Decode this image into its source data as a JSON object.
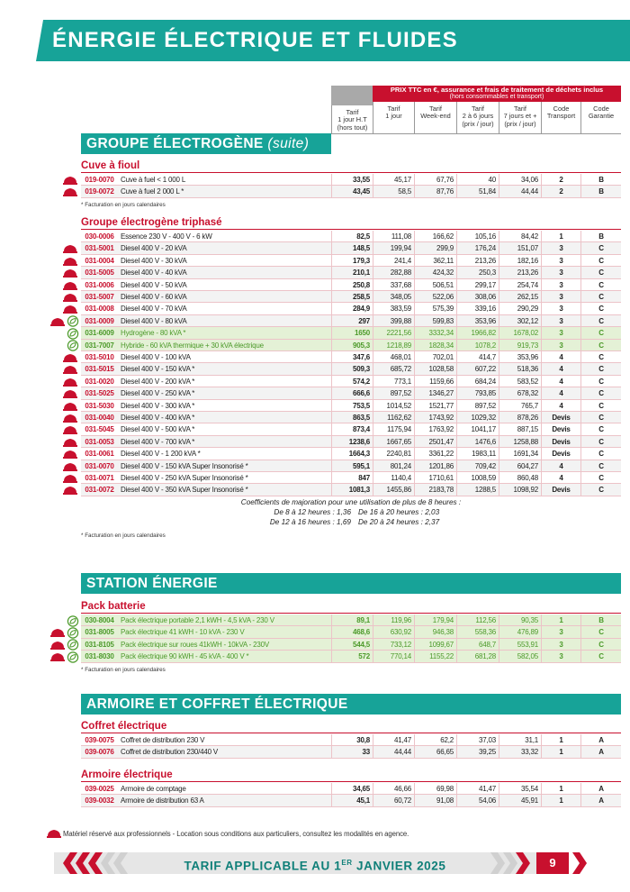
{
  "title": "ÉNERGIE ÉLECTRIQUE ET FLUIDES",
  "table_header": {
    "price_title": "PRIX TTC en €, assurance et frais de traitement de déchets inclus",
    "price_subtitle": "(hors consommables et transport)",
    "columns": [
      [
        "Tarif",
        "1 jour H.T",
        "(hors tout)"
      ],
      [
        "Tarif",
        "1 jour"
      ],
      [
        "Tarif",
        "Week-end"
      ],
      [
        "Tarif",
        "2 à 6 jours",
        "(prix / jour)"
      ],
      [
        "Tarif",
        "7 jours et +",
        "(prix / jour)"
      ],
      [
        "Code",
        "Transport"
      ],
      [
        "Code",
        "Garantie"
      ]
    ]
  },
  "sections": [
    {
      "title": "GROUPE ÉLECTROGÈNE",
      "title_suffix": "(suite)",
      "groups": [
        {
          "title": "Cuve à fioul",
          "rows": [
            {
              "cells": [
                "019-0070",
                "Cuve à fuel  < 1 000 L",
                "33,55",
                "45,17",
                "67,76",
                "40",
                "34,06",
                "2",
                "B"
              ],
              "pro": true,
              "eco": false,
              "green": false
            },
            {
              "cells": [
                "019-0072",
                "Cuve à fuel  2 000 L *",
                "43,45",
                "58,5",
                "87,76",
                "51,84",
                "44,44",
                "2",
                "B"
              ],
              "pro": true,
              "eco": false,
              "green": false
            }
          ],
          "note": "* Facturation en jours calendaires"
        },
        {
          "title": "Groupe électrogène triphasé",
          "rows": [
            {
              "cells": [
                "030-0006",
                "Essence 230 V - 400 V - 6 kW",
                "82,5",
                "111,08",
                "166,62",
                "105,16",
                "84,42",
                "1",
                "B"
              ],
              "pro": false,
              "eco": false,
              "green": false
            },
            {
              "cells": [
                "031-5001",
                "Diesel 400 V - 20 kVA",
                "148,5",
                "199,94",
                "299,9",
                "176,24",
                "151,07",
                "3",
                "C"
              ],
              "pro": true,
              "eco": false,
              "green": false
            },
            {
              "cells": [
                "031-0004",
                "Diesel 400 V - 30 kVA",
                "179,3",
                "241,4",
                "362,11",
                "213,26",
                "182,16",
                "3",
                "C"
              ],
              "pro": true,
              "eco": false,
              "green": false
            },
            {
              "cells": [
                "031-5005",
                "Diesel 400 V - 40 kVA",
                "210,1",
                "282,88",
                "424,32",
                "250,3",
                "213,26",
                "3",
                "C"
              ],
              "pro": true,
              "eco": false,
              "green": false
            },
            {
              "cells": [
                "031-0006",
                "Diesel 400 V - 50 kVA",
                "250,8",
                "337,68",
                "506,51",
                "299,17",
                "254,74",
                "3",
                "C"
              ],
              "pro": true,
              "eco": false,
              "green": false
            },
            {
              "cells": [
                "031-5007",
                "Diesel 400 V - 60 kVA",
                "258,5",
                "348,05",
                "522,06",
                "308,06",
                "262,15",
                "3",
                "C"
              ],
              "pro": true,
              "eco": false,
              "green": false
            },
            {
              "cells": [
                "031-0008",
                "Diesel 400 V - 70 kVA",
                "284,9",
                "383,59",
                "575,39",
                "339,16",
                "290,29",
                "3",
                "C"
              ],
              "pro": true,
              "eco": false,
              "green": false
            },
            {
              "cells": [
                "031-0009",
                "Diesel 400 V - 80 kVA",
                "297",
                "399,88",
                "599,83",
                "353,96",
                "302,12",
                "3",
                "C"
              ],
              "pro": true,
              "eco": true,
              "green": false
            },
            {
              "cells": [
                "031-6009",
                "Hydrogène - 80 kVA *",
                "1650",
                "2221,56",
                "3332,34",
                "1966,82",
                "1678,02",
                "3",
                "C"
              ],
              "pro": false,
              "eco": true,
              "green": true
            },
            {
              "cells": [
                "031-7007",
                "Hybride - 60 kVA thermique + 30 kVA électrique",
                "905,3",
                "1218,89",
                "1828,34",
                "1078,2",
                "919,73",
                "3",
                "C"
              ],
              "pro": false,
              "eco": true,
              "green": true
            },
            {
              "cells": [
                "031-5010",
                "Diesel 400 V - 100 kVA",
                "347,6",
                "468,01",
                "702,01",
                "414,7",
                "353,96",
                "4",
                "C"
              ],
              "pro": true,
              "eco": false,
              "green": false
            },
            {
              "cells": [
                "031-5015",
                "Diesel 400 V - 150 kVA *",
                "509,3",
                "685,72",
                "1028,58",
                "607,22",
                "518,36",
                "4",
                "C"
              ],
              "pro": true,
              "eco": false,
              "green": false
            },
            {
              "cells": [
                "031-0020",
                "Diesel 400 V - 200 kVA *",
                "574,2",
                "773,1",
                "1159,66",
                "684,24",
                "583,52",
                "4",
                "C"
              ],
              "pro": true,
              "eco": false,
              "green": false
            },
            {
              "cells": [
                "031-5025",
                "Diesel 400 V - 250 kVA *",
                "666,6",
                "897,52",
                "1346,27",
                "793,85",
                "678,32",
                "4",
                "C"
              ],
              "pro": true,
              "eco": false,
              "green": false
            },
            {
              "cells": [
                "031-5030",
                "Diesel 400 V - 300 kVA *",
                "753,5",
                "1014,52",
                "1521,77",
                "897,52",
                "765,7",
                "4",
                "C"
              ],
              "pro": true,
              "eco": false,
              "green": false
            },
            {
              "cells": [
                "031-0040",
                "Diesel 400 V - 400 kVA *",
                "863,5",
                "1162,62",
                "1743,92",
                "1029,32",
                "878,26",
                "Devis",
                "C"
              ],
              "pro": true,
              "eco": false,
              "green": false
            },
            {
              "cells": [
                "031-5045",
                "Diesel 400 V - 500 kVA *",
                "873,4",
                "1175,94",
                "1763,92",
                "1041,17",
                "887,15",
                "Devis",
                "C"
              ],
              "pro": true,
              "eco": false,
              "green": false
            },
            {
              "cells": [
                "031-0053",
                "Diesel 400 V - 700 kVA *",
                "1238,6",
                "1667,65",
                "2501,47",
                "1476,6",
                "1258,88",
                "Devis",
                "C"
              ],
              "pro": true,
              "eco": false,
              "green": false
            },
            {
              "cells": [
                "031-0061",
                "Diesel 400 V - 1 200 kVA *",
                "1664,3",
                "2240,81",
                "3361,22",
                "1983,11",
                "1691,34",
                "Devis",
                "C"
              ],
              "pro": true,
              "eco": false,
              "green": false
            },
            {
              "cells": [
                "031-0070",
                "Diesel 400 V - 150 kVA Super Insonorisé *",
                "595,1",
                "801,24",
                "1201,86",
                "709,42",
                "604,27",
                "4",
                "C"
              ],
              "pro": true,
              "eco": false,
              "green": false
            },
            {
              "cells": [
                "031-0071",
                "Diesel 400 V - 250 kVA Super Insonorisé *",
                "847",
                "1140,4",
                "1710,61",
                "1008,59",
                "860,48",
                "4",
                "C"
              ],
              "pro": true,
              "eco": false,
              "green": false
            },
            {
              "cells": [
                "031-0072",
                "Diesel 400 V - 350 kVA Super Insonorisé *",
                "1081,3",
                "1455,86",
                "2183,78",
                "1288,5",
                "1098,92",
                "Devis",
                "C"
              ],
              "pro": true,
              "eco": false,
              "green": false
            }
          ],
          "coefficients": {
            "title": "Coefficients de majoration pour une utilisation de plus de 8 heures :",
            "items": [
              "De 8 à 12 heures : 1,36",
              "De 16 à 20 heures : 2,03",
              "De 12 à 16 heures : 1,69",
              "De 20 à 24 heures : 2,37"
            ]
          },
          "note": "* Facturation en jours calendaires"
        }
      ]
    },
    {
      "title": "STATION ÉNERGIE",
      "groups": [
        {
          "title": "Pack batterie",
          "rows": [
            {
              "cells": [
                "030-8004",
                "Pack électrique portable 2,1 kWH - 4,5 kVA - 230 V",
                "89,1",
                "119,96",
                "179,94",
                "112,56",
                "90,35",
                "1",
                "B"
              ],
              "pro": false,
              "eco": true,
              "green": true
            },
            {
              "cells": [
                "031-8005",
                "Pack électrique 41 kWH - 10 kVA - 230 V",
                "468,6",
                "630,92",
                "946,38",
                "558,36",
                "476,89",
                "3",
                "C"
              ],
              "pro": true,
              "eco": true,
              "green": true
            },
            {
              "cells": [
                "031-8105",
                "Pack électrique sur roues  41kWH - 10kVA - 230V",
                "544,5",
                "733,12",
                "1099,67",
                "648,7",
                "553,91",
                "3",
                "C"
              ],
              "pro": true,
              "eco": true,
              "green": true
            },
            {
              "cells": [
                "031-8030",
                "Pack électrique 90 kWH - 45 kVA - 400 V *",
                "572",
                "770,14",
                "1155,22",
                "681,28",
                "582,05",
                "3",
                "C"
              ],
              "pro": true,
              "eco": true,
              "green": true
            }
          ],
          "note": "* Facturation en jours calendaires"
        }
      ]
    },
    {
      "title": "ARMOIRE ET COFFRET ÉLECTRIQUE",
      "groups": [
        {
          "title": "Coffret électrique",
          "rows": [
            {
              "cells": [
                "039-0075",
                "Coffret de distribution 230 V",
                "30,8",
                "41,47",
                "62,2",
                "37,03",
                "31,1",
                "1",
                "A"
              ],
              "pro": false,
              "eco": false,
              "green": false
            },
            {
              "cells": [
                "039-0076",
                "Coffret de distribution 230/440 V",
                "33",
                "44,44",
                "66,65",
                "39,25",
                "33,32",
                "1",
                "A"
              ],
              "pro": false,
              "eco": false,
              "green": false
            }
          ]
        },
        {
          "title": "Armoire électrique",
          "rows": [
            {
              "cells": [
                "039-0025",
                "Armoire de comptage",
                "34,65",
                "46,66",
                "69,98",
                "41,47",
                "35,54",
                "1",
                "A"
              ],
              "pro": false,
              "eco": false,
              "green": false
            },
            {
              "cells": [
                "039-0032",
                "Armoire de distribution 63 A",
                "45,1",
                "60,72",
                "91,08",
                "54,06",
                "45,91",
                "1",
                "A"
              ],
              "pro": false,
              "eco": false,
              "green": false
            }
          ]
        }
      ]
    }
  ],
  "footer": {
    "legend": "Matériel réservé aux professionnels - Location sous conditions aux particuliers, consultez les modalités en agence.",
    "tariff": [
      "TARIF APPLICABLE AU 1",
      "ER",
      " JANVIER 2025"
    ],
    "page": "9"
  }
}
